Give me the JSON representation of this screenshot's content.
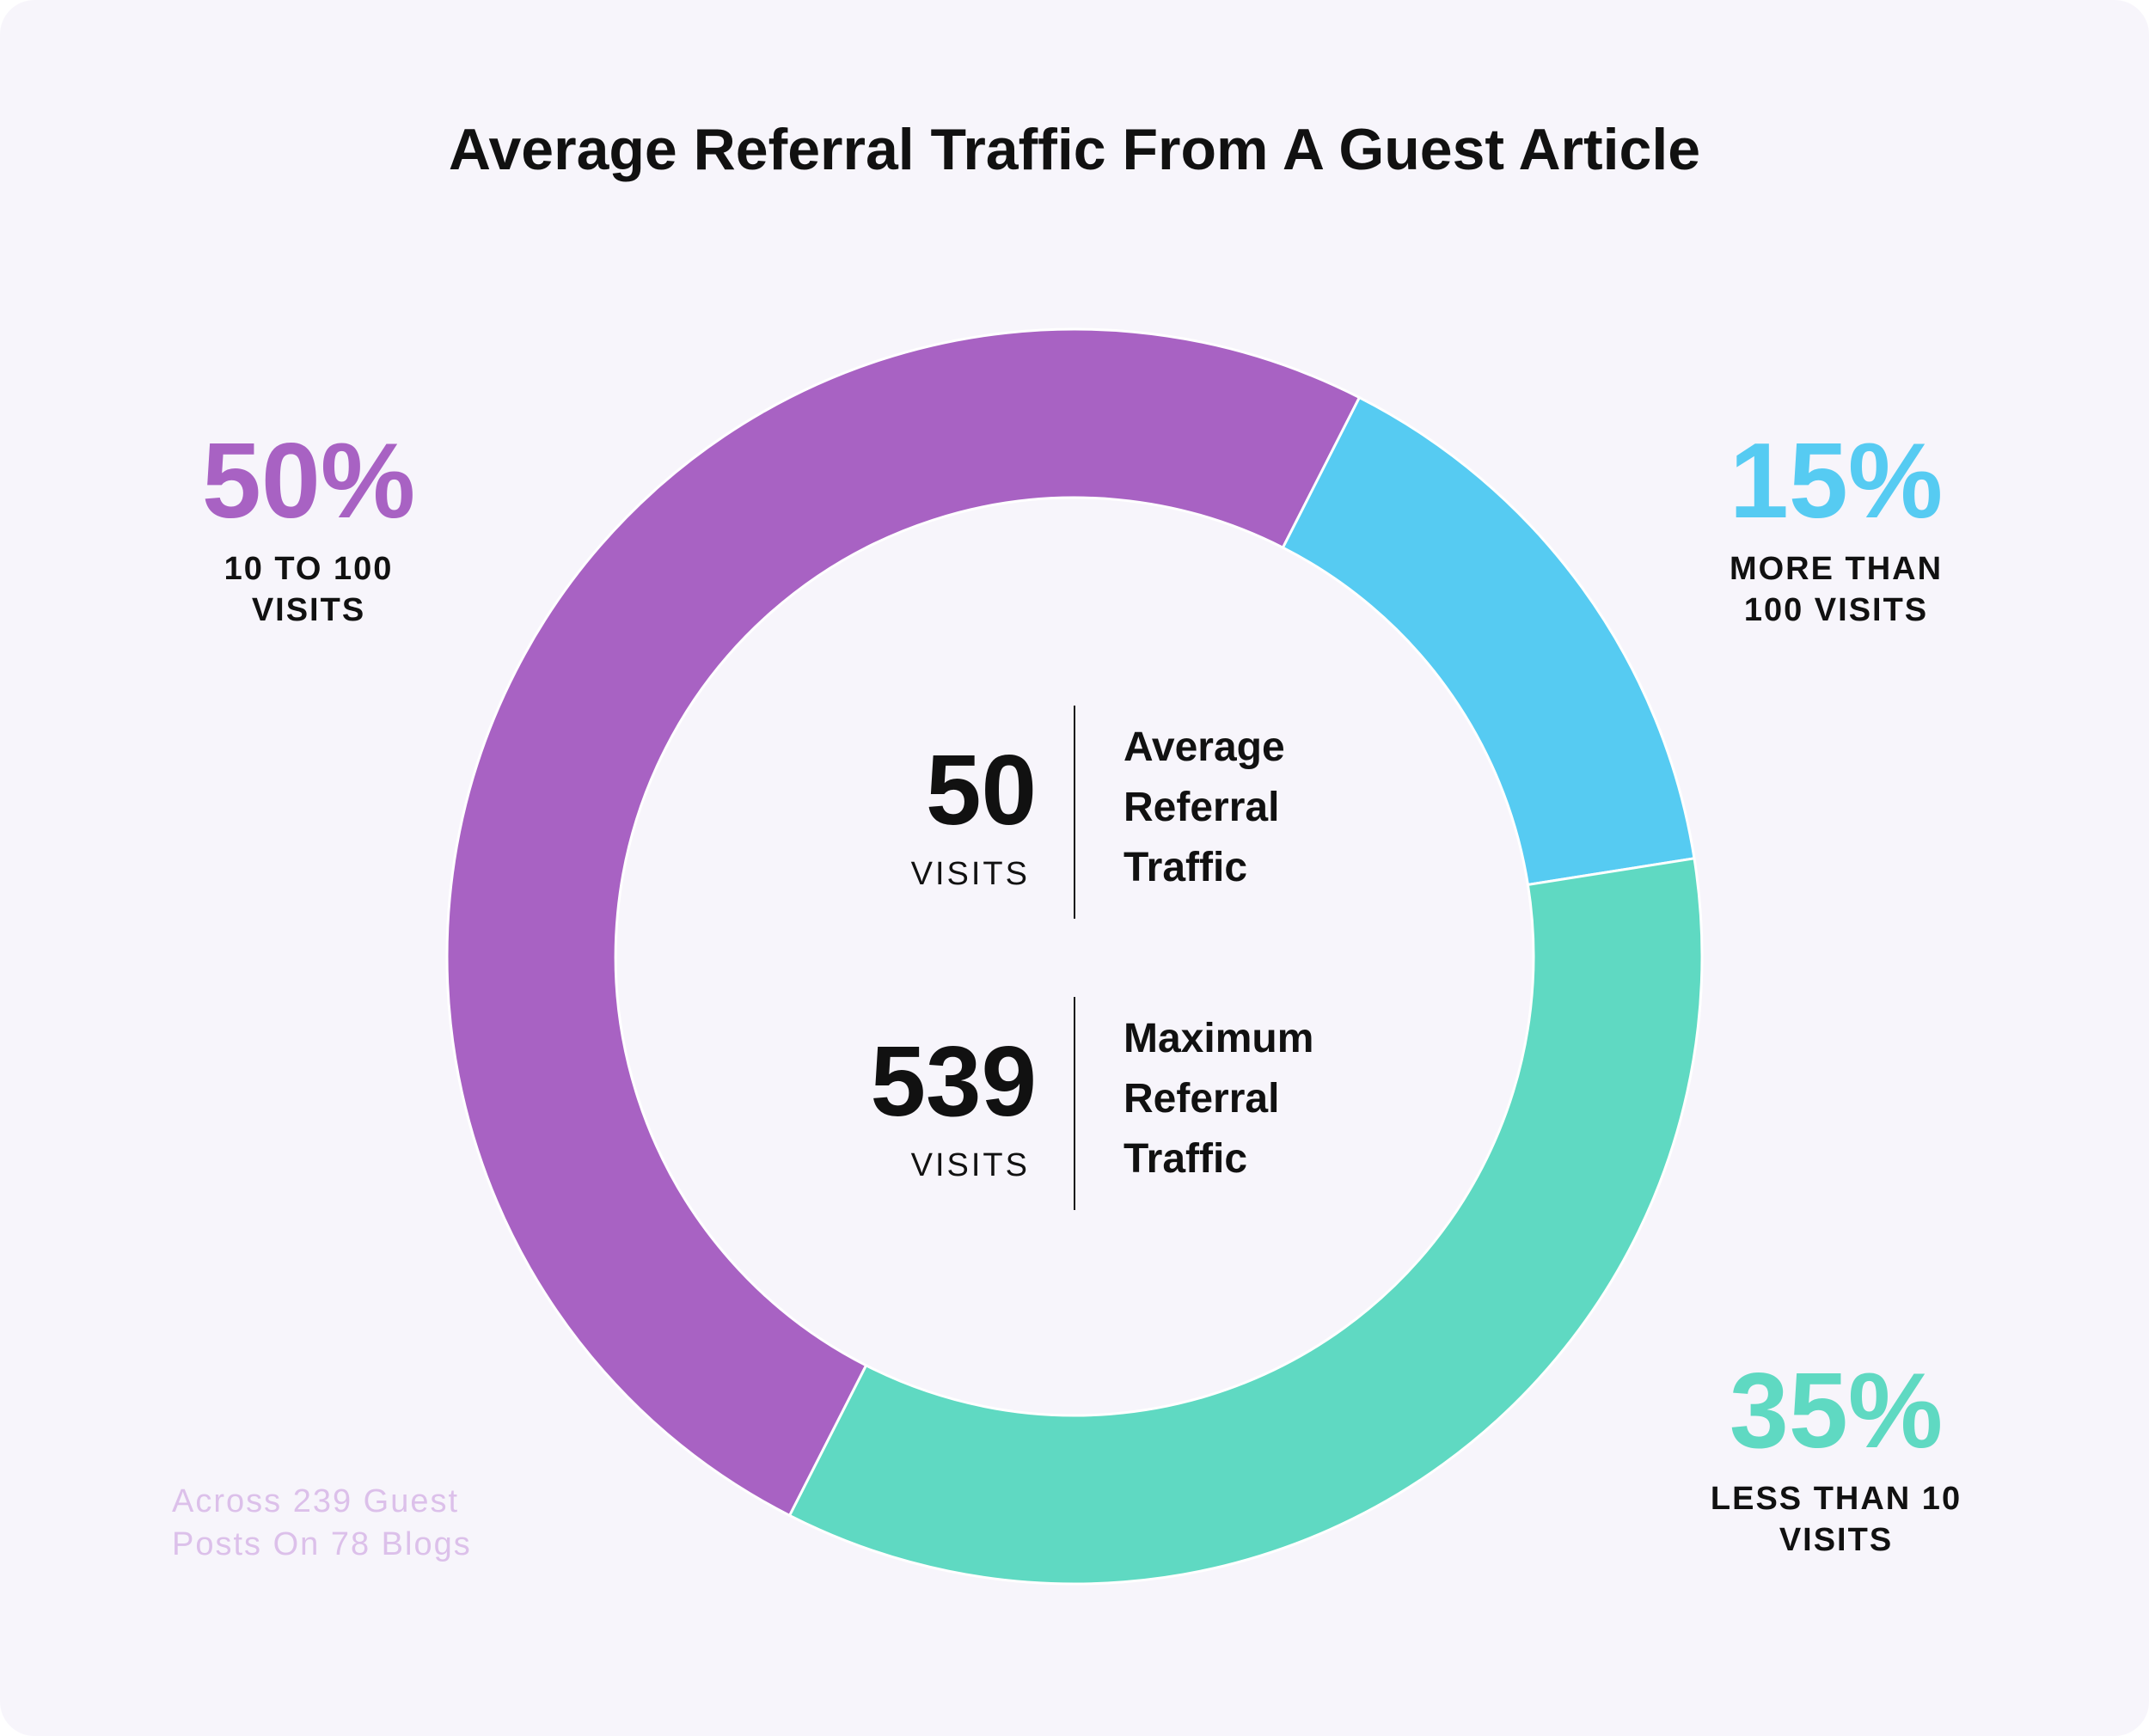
{
  "chart_data": {
    "type": "donut",
    "title": "Average Referral Traffic From A Guest Article",
    "categories": [
      "10 TO 100 VISITS",
      "MORE THAN 100 VISITS",
      "LESS THAN 10 VISITS"
    ],
    "values": [
      50,
      15,
      35
    ],
    "value_labels": [
      "50%",
      "15%",
      "35%"
    ],
    "colors": [
      "#a862c3",
      "#56cbf2",
      "#5fd9c2"
    ],
    "center_stats": [
      {
        "value": 50,
        "unit": "VISITS",
        "label": "Average Referral Traffic"
      },
      {
        "value": 539,
        "unit": "VISITS",
        "label": "Maximum Referral Traffic"
      }
    ],
    "note": "Across 239 Guest Posts On 78 Blogs"
  }
}
